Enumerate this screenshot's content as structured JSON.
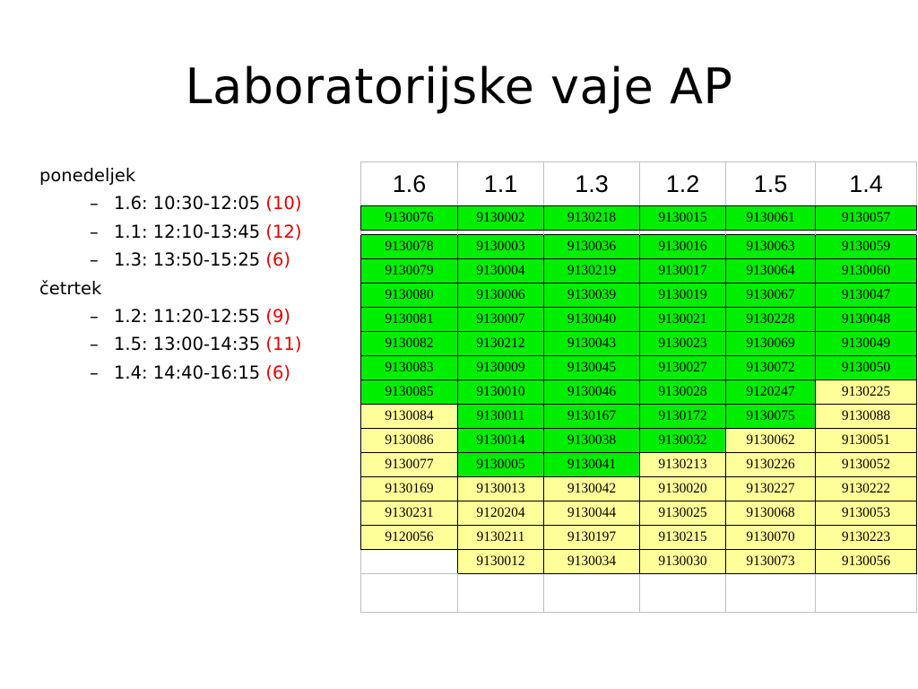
{
  "title": "Laboratorijske vaje AP",
  "schedule": [
    {
      "day": "ponedeljek",
      "slots": [
        {
          "dash": "–",
          "text": "1.6: 10:30-12:05",
          "count": "(10)"
        },
        {
          "dash": "–",
          "text": "1.1: 12:10-13:45",
          "count": "(12)"
        },
        {
          "dash": "–",
          "text": "1.3: 13:50-15:25",
          "count": "(6)"
        }
      ]
    },
    {
      "day": "četrtek",
      "slots": [
        {
          "dash": "–",
          "text": "1.2: 11:20-12:55",
          "count": "(9)"
        },
        {
          "dash": "–",
          "text": "1.5: 13:00-14:35",
          "count": "(11)"
        },
        {
          "dash": "–",
          "text": "1.4: 14:40-16:15",
          "count": "(6)"
        }
      ]
    }
  ],
  "table": {
    "colors": {
      "green": "#00ee00",
      "yellow": "#ffff99"
    },
    "headers": [
      "1.6",
      "1.1",
      "1.3",
      "1.2",
      "1.5",
      "1.4"
    ],
    "rows": [
      [
        [
          "9130076",
          "g"
        ],
        [
          "9130002",
          "g"
        ],
        [
          "9130218",
          "g"
        ],
        [
          "9130015",
          "g"
        ],
        [
          "9130061",
          "g"
        ],
        [
          "9130057",
          "g"
        ]
      ],
      [
        [
          "9130078",
          "g"
        ],
        [
          "9130003",
          "g"
        ],
        [
          "9130036",
          "g"
        ],
        [
          "9130016",
          "g"
        ],
        [
          "9130063",
          "g"
        ],
        [
          "9130059",
          "g"
        ]
      ],
      [
        [
          "9130079",
          "g"
        ],
        [
          "9130004",
          "g"
        ],
        [
          "9130219",
          "g"
        ],
        [
          "9130017",
          "g"
        ],
        [
          "9130064",
          "g"
        ],
        [
          "9130060",
          "g"
        ]
      ],
      [
        [
          "9130080",
          "g"
        ],
        [
          "9130006",
          "g"
        ],
        [
          "9130039",
          "g"
        ],
        [
          "9130019",
          "g"
        ],
        [
          "9130067",
          "g"
        ],
        [
          "9130047",
          "g"
        ]
      ],
      [
        [
          "9130081",
          "g"
        ],
        [
          "9130007",
          "g"
        ],
        [
          "9130040",
          "g"
        ],
        [
          "9130021",
          "g"
        ],
        [
          "9130228",
          "g"
        ],
        [
          "9130048",
          "g"
        ]
      ],
      [
        [
          "9130082",
          "g"
        ],
        [
          "9130212",
          "g"
        ],
        [
          "9130043",
          "g"
        ],
        [
          "9130023",
          "g"
        ],
        [
          "9130069",
          "g"
        ],
        [
          "9130049",
          "g"
        ]
      ],
      [
        [
          "9130083",
          "g"
        ],
        [
          "9130009",
          "g"
        ],
        [
          "9130045",
          "g"
        ],
        [
          "9130027",
          "g"
        ],
        [
          "9130072",
          "g"
        ],
        [
          "9130050",
          "g"
        ]
      ],
      [
        [
          "9130085",
          "g"
        ],
        [
          "9130010",
          "g"
        ],
        [
          "9130046",
          "g"
        ],
        [
          "9130028",
          "g"
        ],
        [
          "9120247",
          "g"
        ],
        [
          "9130225",
          "y"
        ]
      ],
      [
        [
          "9130084",
          "y"
        ],
        [
          "9130011",
          "g"
        ],
        [
          "9130167",
          "g"
        ],
        [
          "9130172",
          "g"
        ],
        [
          "9130075",
          "g"
        ],
        [
          "9130088",
          "y"
        ]
      ],
      [
        [
          "9130086",
          "y"
        ],
        [
          "9130014",
          "g"
        ],
        [
          "9130038",
          "g"
        ],
        [
          "9130032",
          "g"
        ],
        [
          "9130062",
          "y"
        ],
        [
          "9130051",
          "y"
        ]
      ],
      [
        [
          "9130077",
          "y"
        ],
        [
          "9130005",
          "g"
        ],
        [
          "9130041",
          "g"
        ],
        [
          "9130213",
          "y"
        ],
        [
          "9130226",
          "y"
        ],
        [
          "9130052",
          "y"
        ]
      ],
      [
        [
          "9130169",
          "y"
        ],
        [
          "9130013",
          "y"
        ],
        [
          "9130042",
          "y"
        ],
        [
          "9130020",
          "y"
        ],
        [
          "9130227",
          "y"
        ],
        [
          "9130222",
          "y"
        ]
      ],
      [
        [
          "9130231",
          "y"
        ],
        [
          "9120204",
          "y"
        ],
        [
          "9130044",
          "y"
        ],
        [
          "9130025",
          "y"
        ],
        [
          "9130068",
          "y"
        ],
        [
          "9130053",
          "y"
        ]
      ],
      [
        [
          "9120056",
          "y"
        ],
        [
          "9130211",
          "y"
        ],
        [
          "9130197",
          "y"
        ],
        [
          "9130215",
          "y"
        ],
        [
          "9130070",
          "y"
        ],
        [
          "9130223",
          "y"
        ]
      ],
      [
        [
          "",
          "w"
        ],
        [
          "9130012",
          "y"
        ],
        [
          "9130034",
          "y"
        ],
        [
          "9130030",
          "y"
        ],
        [
          "9130073",
          "y"
        ],
        [
          "9130056",
          "y"
        ]
      ]
    ]
  }
}
